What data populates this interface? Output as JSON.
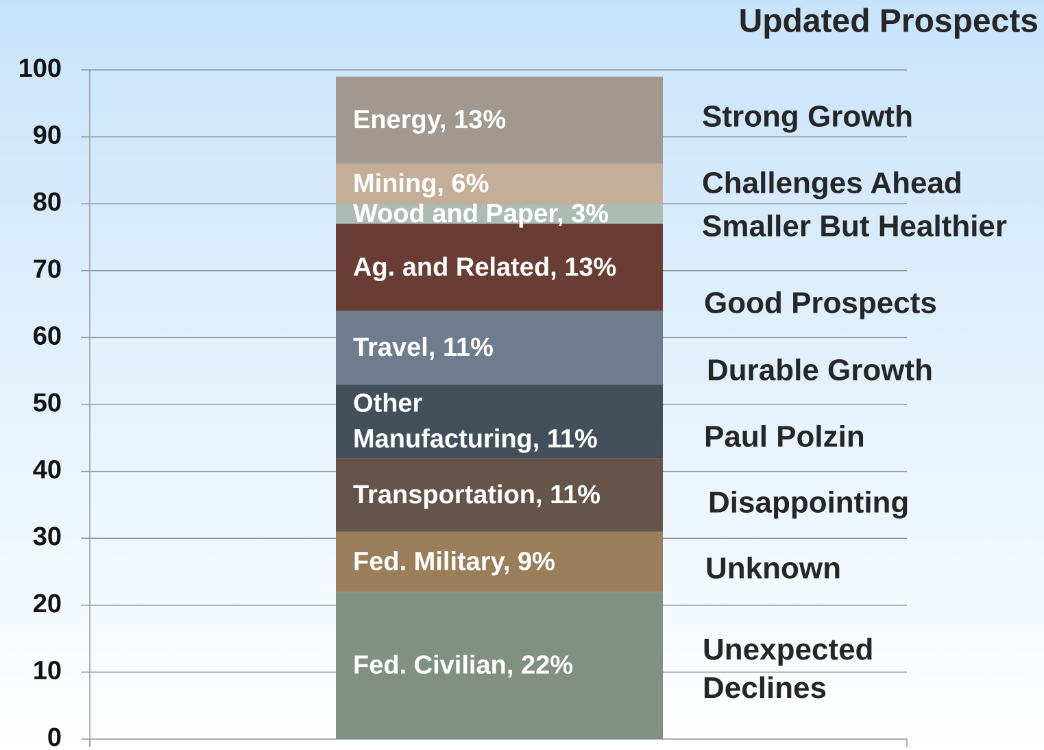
{
  "chart_data": {
    "type": "stacked_bar",
    "ylim": [
      0,
      100
    ],
    "yticks": [
      0,
      10,
      20,
      30,
      40,
      50,
      60,
      70,
      80,
      90,
      100
    ],
    "grid": true,
    "series": [
      {
        "color": "#829083",
        "values": [
          22
        ],
        "value_labels": [
          "Fed. Civilian, 22%"
        ]
      },
      {
        "color": "#9a7e5a",
        "values": [
          9
        ],
        "value_labels": [
          "Fed. Military, 9%"
        ]
      },
      {
        "color": "#65544a",
        "values": [
          11
        ],
        "value_labels": [
          "Transportation, 11%"
        ]
      },
      {
        "color": "#43505c",
        "values": [
          11
        ],
        "value_labels": [
          "Other\nManufacturing, 11%"
        ]
      },
      {
        "color": "#6f7c8d",
        "values": [
          11
        ],
        "value_labels": [
          "Travel, 11%"
        ]
      },
      {
        "color": "#6a3d34",
        "values": [
          13
        ],
        "value_labels": [
          "Ag. and Related, 13%"
        ]
      },
      {
        "color": "#acbcb5",
        "values": [
          3
        ],
        "value_labels": [
          "Wood and Paper, 3%"
        ]
      },
      {
        "color": "#c4ae98",
        "values": [
          6
        ],
        "value_labels": [
          "Mining, 6%"
        ]
      },
      {
        "color": "#a19891",
        "values": [
          13
        ],
        "value_labels": [
          "Energy, 13%"
        ]
      }
    ],
    "annotations": {
      "title": "Updated Prospects",
      "items": [
        "Strong Growth",
        "Challenges Ahead",
        "Smaller But Healthier",
        "Good Prospects",
        "Durable Growth",
        "Paul Polzin",
        "Disappointing",
        "Unknown",
        "Unexpected\nDeclines"
      ]
    }
  }
}
